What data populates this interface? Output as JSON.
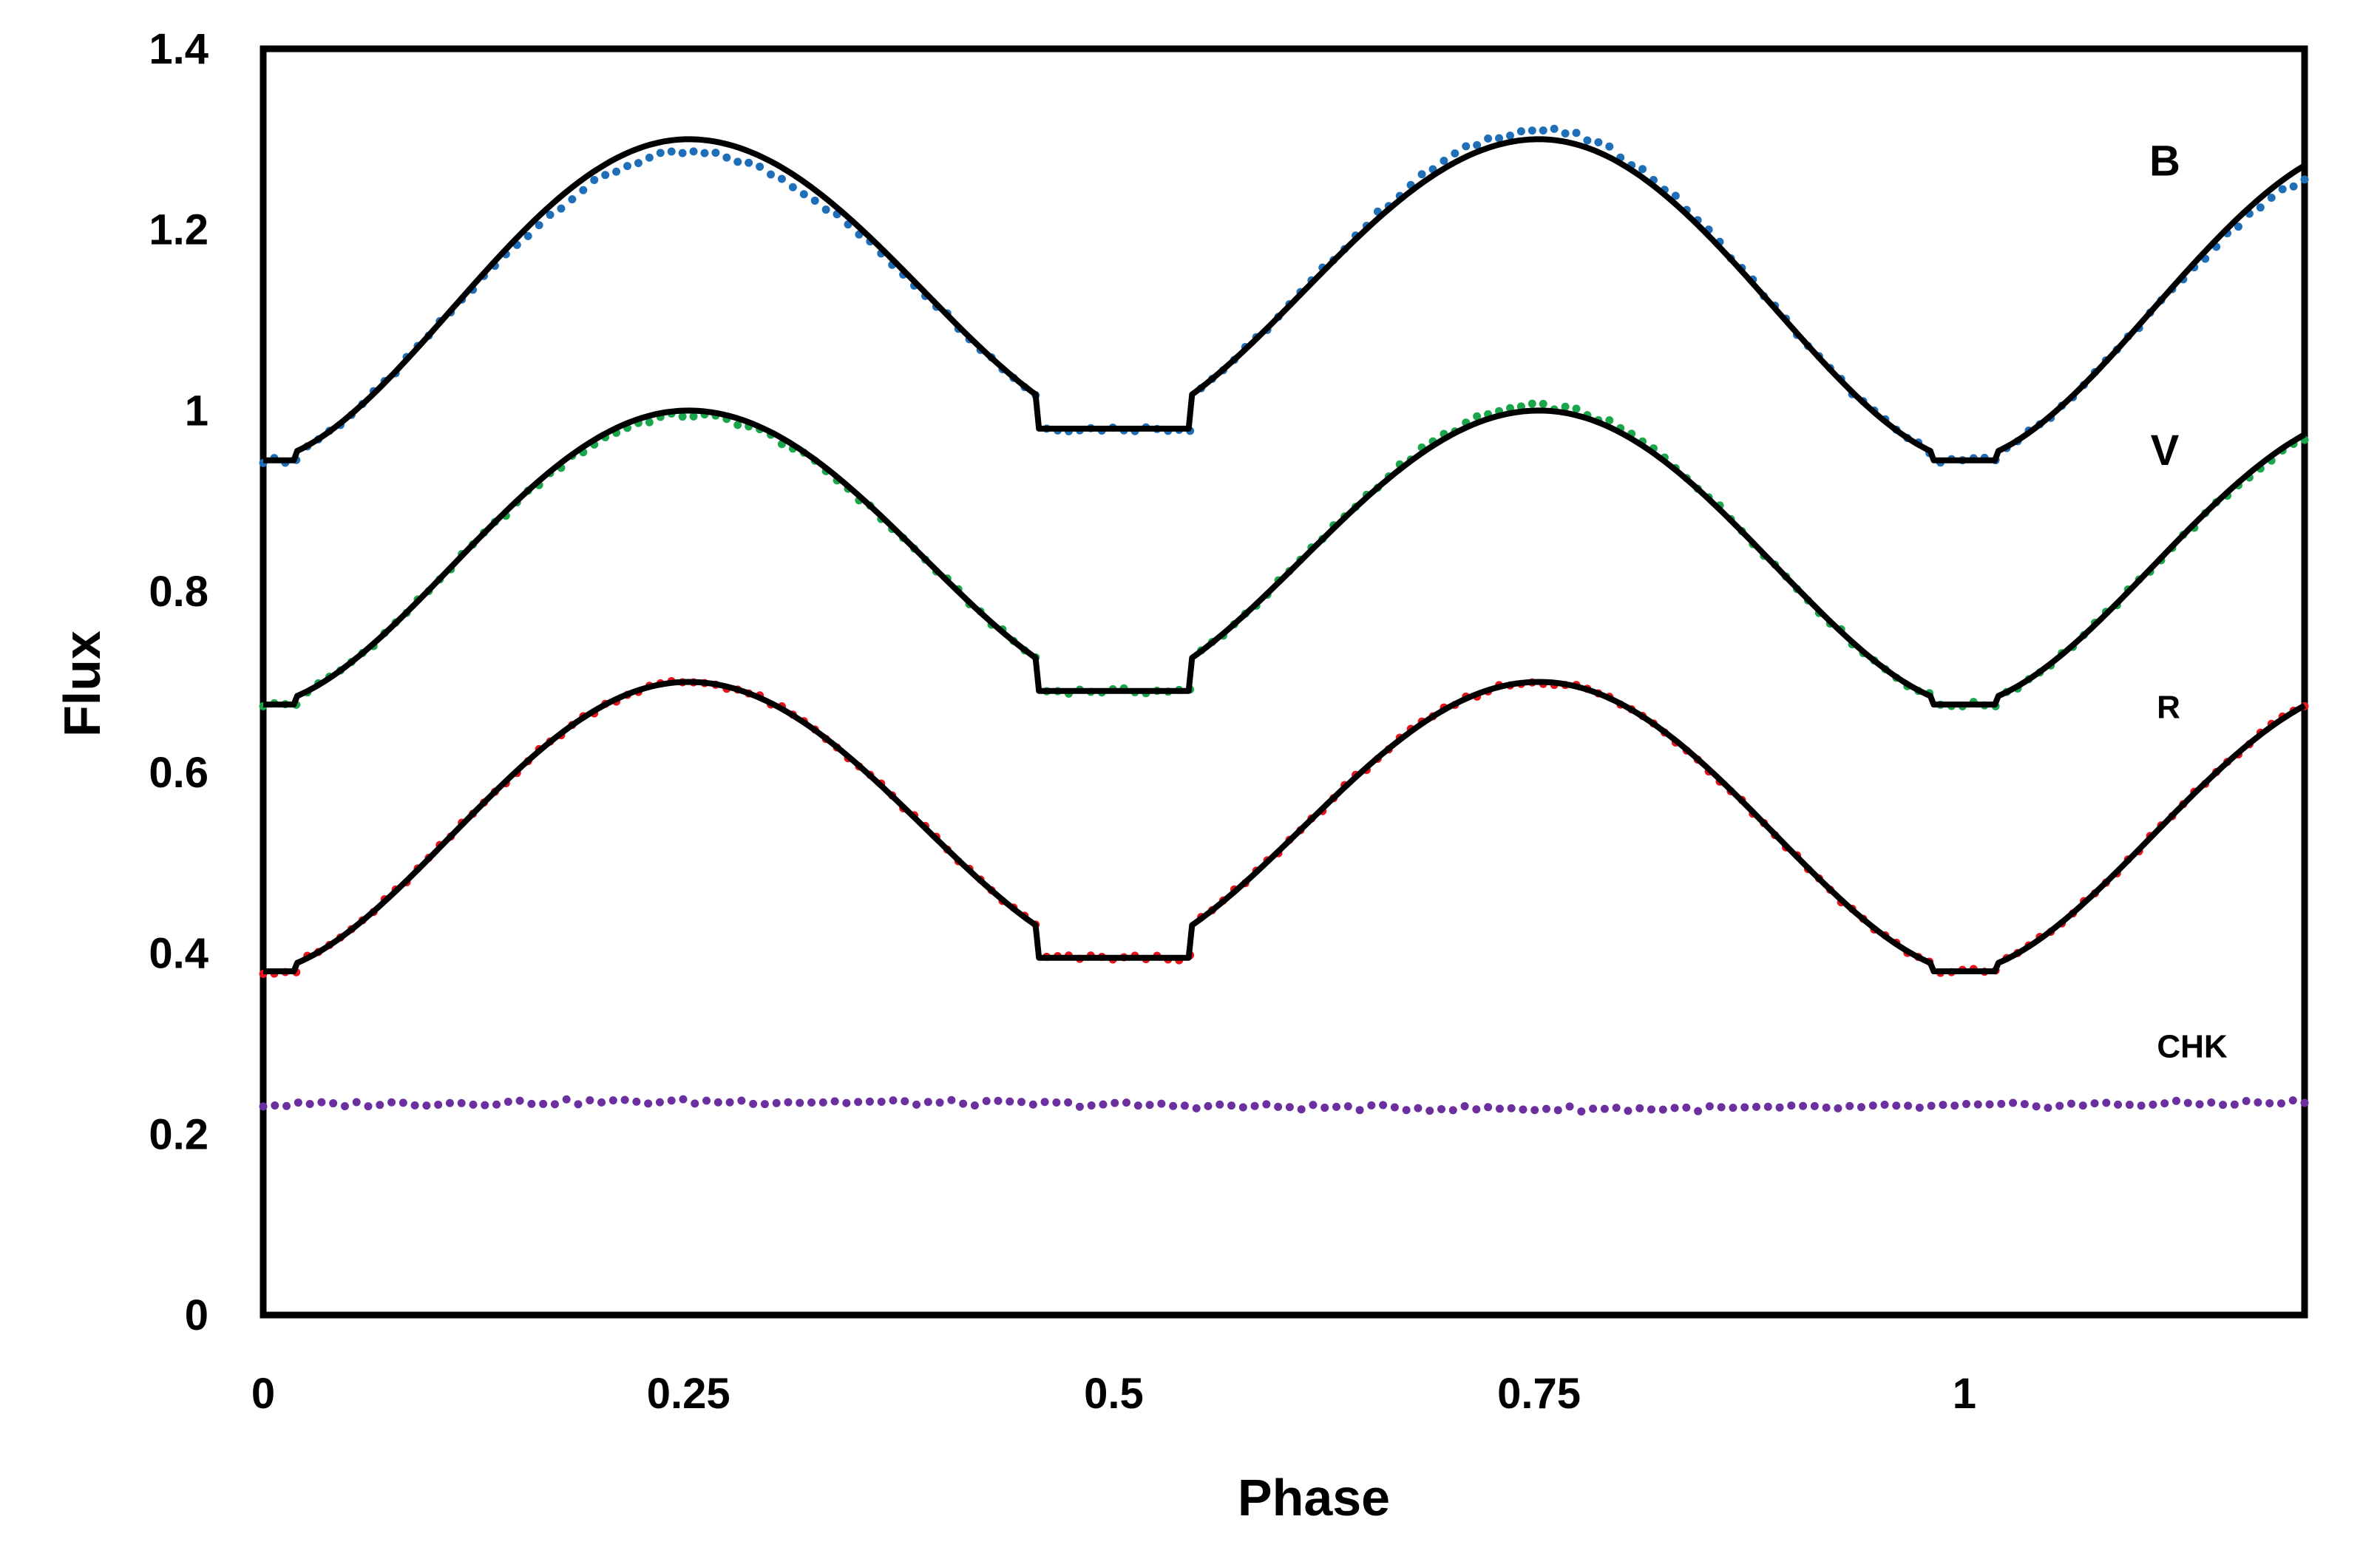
{
  "chart_data": {
    "type": "scatter",
    "title": "",
    "xlabel": "Phase",
    "ylabel": "Flux",
    "xlim": [
      0,
      1.2
    ],
    "ylim": [
      0,
      1.4
    ],
    "x_ticks": [
      "0",
      "0.25",
      "0.5",
      "0.75",
      "1"
    ],
    "y_ticks": [
      "0",
      "0.2",
      "0.4",
      "0.6",
      "0.8",
      "1",
      "1.2",
      "1.4"
    ],
    "grid": false,
    "legend": "none",
    "series": [
      {
        "name": "B",
        "color": "#1f6fb8",
        "baseline": 0.945,
        "amplitude": 0.355,
        "eclipse_depth": 0.32,
        "min1_flux": 0.945,
        "max1_flux": 1.3,
        "min2_flux": 0.98,
        "max2_flux": 1.3,
        "observed_max1": 1.285,
        "observed_max2": 1.31
      },
      {
        "name": "V",
        "color": "#1aa64a",
        "baseline": 0.675,
        "amplitude": 0.325,
        "min1_flux": 0.675,
        "max1_flux": 1.0,
        "min2_flux": 0.69,
        "max2_flux": 1.0,
        "observed_max1": 0.995,
        "observed_max2": 1.005
      },
      {
        "name": "R",
        "color": "#e8141b",
        "baseline": 0.38,
        "amplitude": 0.32,
        "min1_flux": 0.38,
        "max1_flux": 0.7,
        "min2_flux": 0.395,
        "max2_flux": 0.7,
        "observed_max1": 0.7,
        "observed_max2": 0.7
      },
      {
        "name": "CHK",
        "color": "#6b2fa0",
        "constant_flux": 0.232
      }
    ],
    "model_line_color": "#000000"
  }
}
